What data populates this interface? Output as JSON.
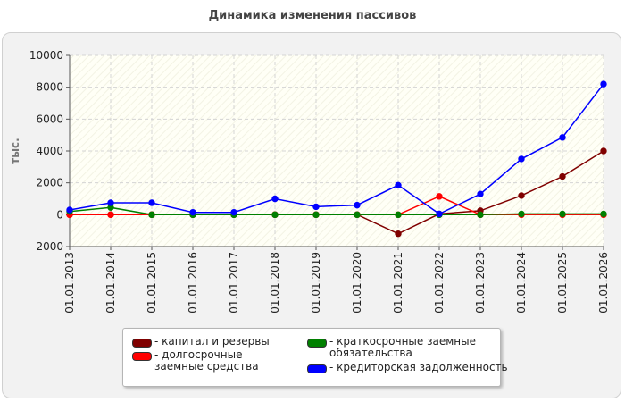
{
  "title": "Динамика изменения пассивов",
  "chart_data": {
    "type": "line",
    "title": "Динамика изменения пассивов",
    "ylabel": "тыс.",
    "xlabel": "",
    "ylim": [
      -2000,
      10000
    ],
    "yticks": [
      -2000,
      0,
      2000,
      4000,
      6000,
      8000,
      10000
    ],
    "grid": true,
    "legend_position": "bottom",
    "x": [
      "01.01.2013",
      "01.01.2014",
      "01.01.2015",
      "01.01.2016",
      "01.01.2017",
      "01.01.2018",
      "01.01.2019",
      "01.01.2020",
      "01.01.2021",
      "01.01.2022",
      "01.01.2023",
      "01.01.2024",
      "01.01.2025",
      "01.01.2026"
    ],
    "series": [
      {
        "name": "- капитал и резервы",
        "color": "#800000",
        "values": [
          10,
          10,
          10,
          10,
          10,
          10,
          10,
          10,
          -1200,
          50,
          250,
          1200,
          2400,
          4000
        ]
      },
      {
        "name": "- долгосрочные заемные средства",
        "color": "#ff0000",
        "values": [
          0,
          0,
          0,
          0,
          0,
          0,
          0,
          0,
          0,
          1150,
          0,
          0,
          0,
          0
        ]
      },
      {
        "name": "- краткосрочные заемные обязательства",
        "color": "#008000",
        "values": [
          200,
          450,
          0,
          0,
          0,
          0,
          0,
          0,
          0,
          0,
          0,
          50,
          50,
          50
        ]
      },
      {
        "name": "- кредиторская задолженность",
        "color": "#0000ff",
        "values": [
          300,
          750,
          750,
          150,
          150,
          1000,
          500,
          600,
          1850,
          50,
          1300,
          3500,
          4850,
          8200
        ]
      }
    ]
  }
}
